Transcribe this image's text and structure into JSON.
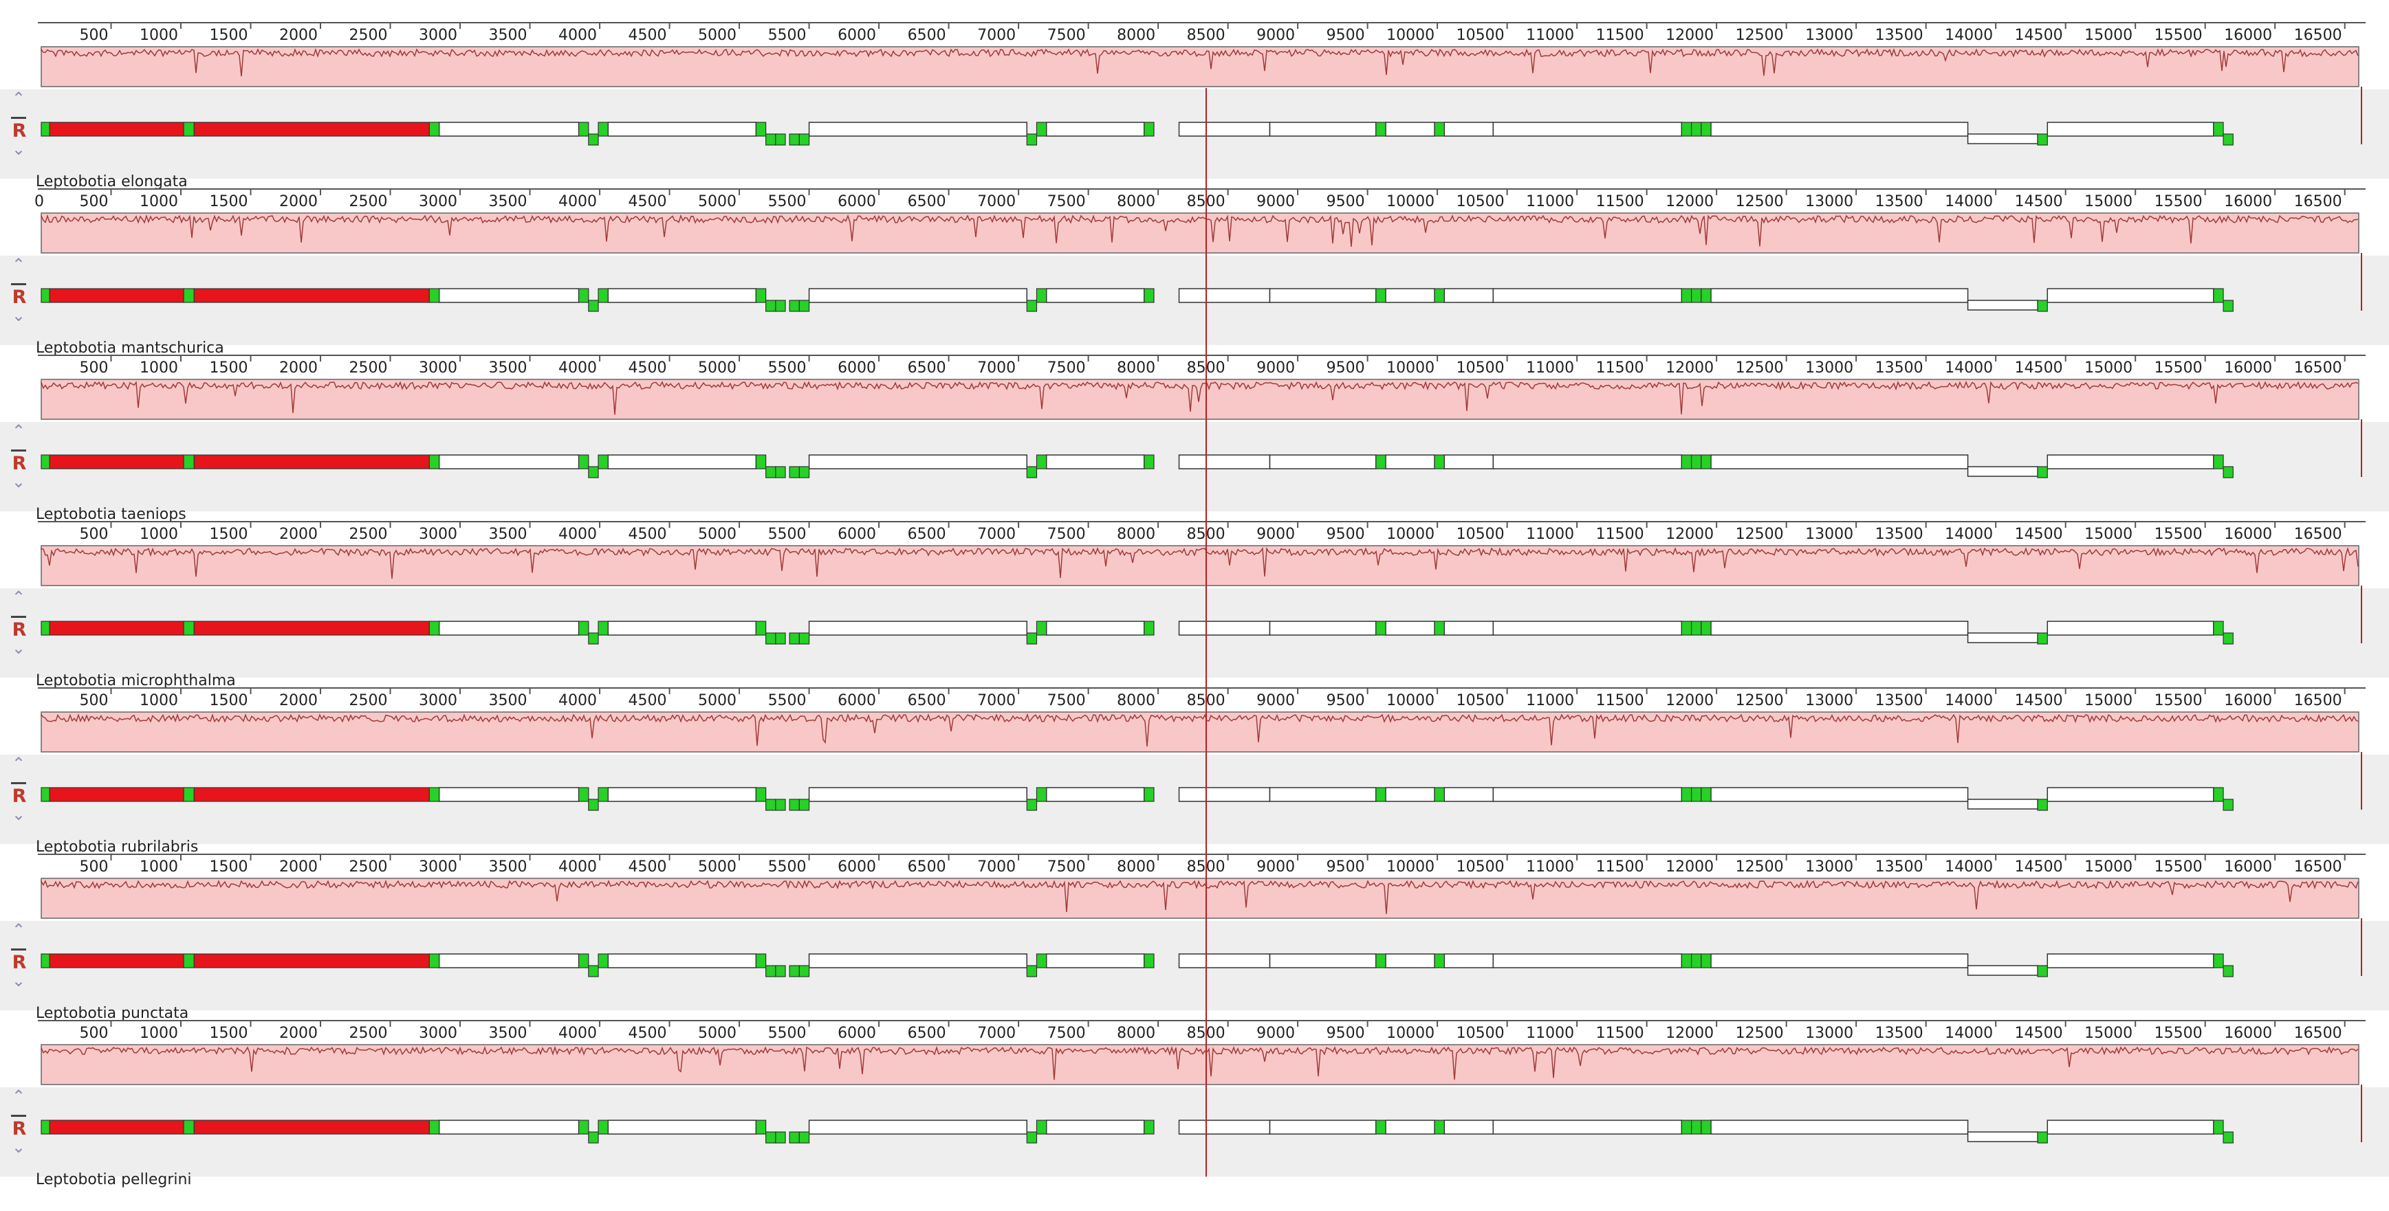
{
  "ruler": {
    "ticks": [
      500,
      1000,
      1500,
      2000,
      2500,
      3000,
      3500,
      4000,
      4500,
      5000,
      5500,
      6000,
      6500,
      7000,
      7500,
      8000,
      8500,
      9000,
      9500,
      10000,
      10500,
      11000,
      11500,
      12000,
      12500,
      13000,
      13500,
      14000,
      14500,
      15000,
      15500,
      16000,
      16500
    ],
    "max": 16600
  },
  "controls": {
    "up_icon": "chevron-up-icon",
    "down_icon": "chevron-down-icon",
    "reverse_label": "R"
  },
  "colors": {
    "similarity_fill": "#f8c8c8",
    "similarity_line": "#a03a3a",
    "rRNA_gene": "#e8141c",
    "tRNA_gene": "#25d225",
    "cursor": "#b22222",
    "panel_bg": "#eeeeee"
  },
  "genomes": [
    {
      "name": "Leptobotia elongata",
      "first_tick_label": ""
    },
    {
      "name": "Leptobotia mantschurica",
      "first_tick_label": "0"
    },
    {
      "name": "Leptobotia taeniops",
      "first_tick_label": ""
    },
    {
      "name": "Leptobotia microphthalma",
      "first_tick_label": ""
    },
    {
      "name": "Leptobotia rubrilabris",
      "first_tick_label": ""
    },
    {
      "name": "Leptobotia punctata",
      "first_tick_label": ""
    },
    {
      "name": "Leptobotia pellegrini",
      "first_tick_label": ""
    }
  ]
}
